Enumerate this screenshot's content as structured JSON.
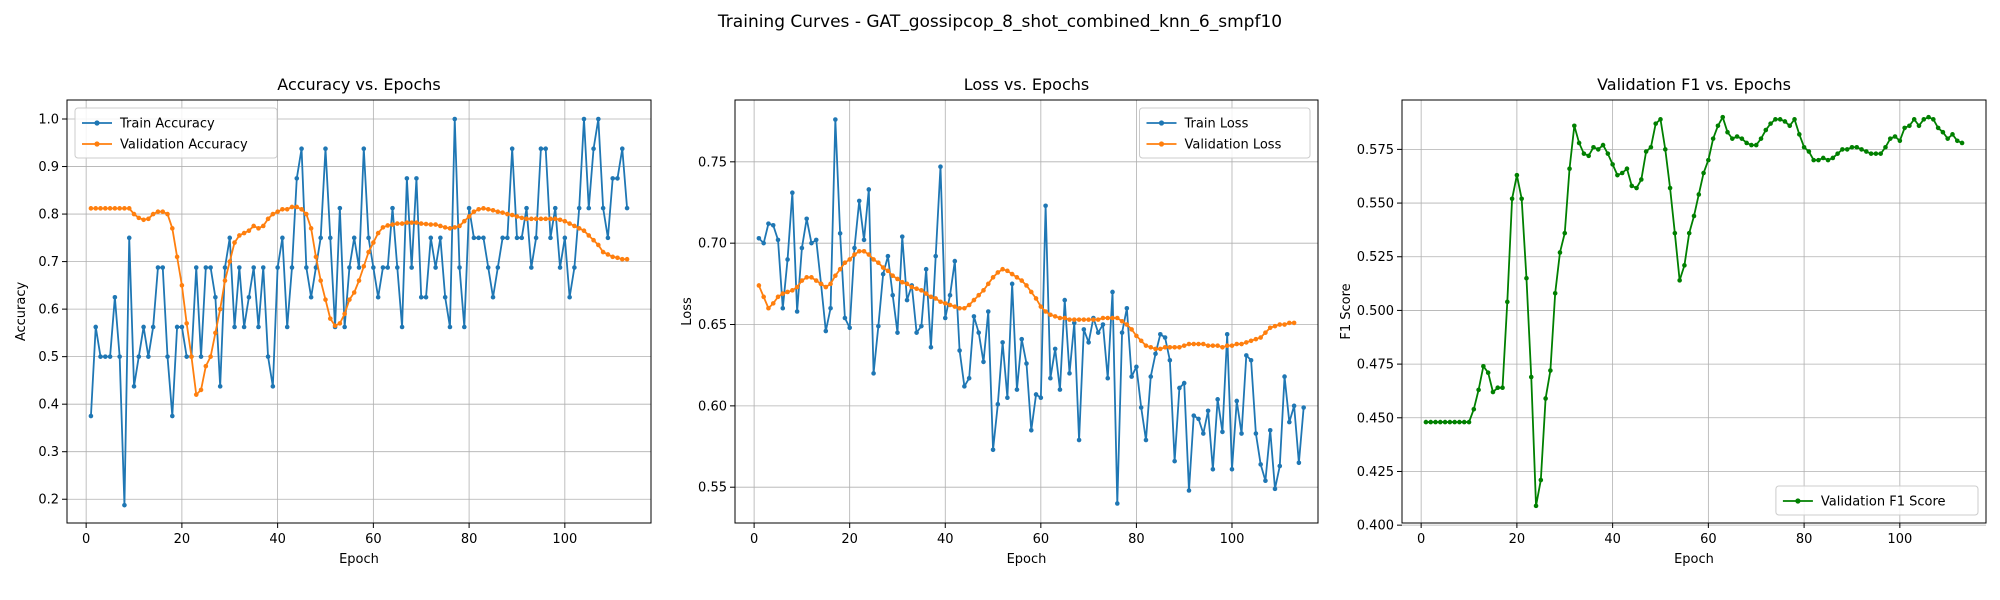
{
  "figure": {
    "title": "Training Curves - GAT_gossipcop_8_shot_combined_knn_6_smpf10",
    "colors": {
      "train": "#1f77b4",
      "validation": "#ff7f0e",
      "f1": "#008000"
    }
  },
  "chart_data": [
    {
      "type": "line",
      "title": "Accuracy vs. Epochs",
      "xlabel": "Epoch",
      "ylabel": "Accuracy",
      "xlim": [
        -4,
        118
      ],
      "ylim": [
        0.15,
        1.04
      ],
      "xticks": [
        0,
        20,
        40,
        60,
        80,
        100
      ],
      "yticks": [
        0.2,
        0.3,
        0.4,
        0.5,
        0.6,
        0.7,
        0.8,
        0.9,
        1.0
      ],
      "ytick_labels": [
        "0.2",
        "0.3",
        "0.4",
        "0.5",
        "0.6",
        "0.7",
        "0.8",
        "0.9",
        "1.0"
      ],
      "grid": true,
      "legend": "upper-left",
      "series": [
        {
          "name": "Train Accuracy",
          "color": "#1f77b4",
          "x_start": 1,
          "values": [
            0.375,
            0.5625,
            0.5,
            0.5,
            0.5,
            0.625,
            0.5,
            0.1875,
            0.75,
            0.4375,
            0.5,
            0.5625,
            0.5,
            0.5625,
            0.6875,
            0.6875,
            0.5,
            0.375,
            0.5625,
            0.5625,
            0.5,
            0.5,
            0.6875,
            0.5,
            0.6875,
            0.6875,
            0.625,
            0.4375,
            0.6875,
            0.75,
            0.5625,
            0.6875,
            0.5625,
            0.625,
            0.6875,
            0.5625,
            0.6875,
            0.5,
            0.4375,
            0.6875,
            0.75,
            0.5625,
            0.6875,
            0.875,
            0.9375,
            0.6875,
            0.625,
            0.6875,
            0.75,
            0.9375,
            0.75,
            0.5625,
            0.8125,
            0.5625,
            0.6875,
            0.75,
            0.6875,
            0.9375,
            0.75,
            0.6875,
            0.625,
            0.6875,
            0.6875,
            0.8125,
            0.6875,
            0.5625,
            0.875,
            0.6875,
            0.875,
            0.625,
            0.625,
            0.75,
            0.6875,
            0.75,
            0.625,
            0.5625,
            1.0,
            0.6875,
            0.5625,
            0.8125,
            0.75,
            0.75,
            0.75,
            0.6875,
            0.625,
            0.6875,
            0.75,
            0.75,
            0.9375,
            0.75,
            0.75,
            0.8125,
            0.6875,
            0.75,
            0.9375,
            0.9375,
            0.75,
            0.8125,
            0.6875,
            0.75,
            0.625,
            0.6875,
            0.8125,
            1.0,
            0.8125,
            0.9375,
            1.0,
            0.8125,
            0.75,
            0.875,
            0.875,
            0.9375,
            0.8125
          ]
        },
        {
          "name": "Validation Accuracy",
          "color": "#ff7f0e",
          "x_start": 1,
          "values": [
            0.812,
            0.812,
            0.812,
            0.812,
            0.812,
            0.812,
            0.812,
            0.812,
            0.812,
            0.8,
            0.792,
            0.788,
            0.79,
            0.8,
            0.805,
            0.805,
            0.8,
            0.77,
            0.71,
            0.65,
            0.57,
            0.5,
            0.42,
            0.43,
            0.48,
            0.5,
            0.55,
            0.6,
            0.66,
            0.7,
            0.74,
            0.755,
            0.76,
            0.765,
            0.775,
            0.77,
            0.775,
            0.79,
            0.8,
            0.805,
            0.81,
            0.81,
            0.815,
            0.815,
            0.81,
            0.8,
            0.77,
            0.71,
            0.66,
            0.62,
            0.58,
            0.565,
            0.57,
            0.59,
            0.62,
            0.635,
            0.66,
            0.69,
            0.72,
            0.74,
            0.76,
            0.772,
            0.776,
            0.778,
            0.78,
            0.78,
            0.782,
            0.782,
            0.782,
            0.78,
            0.779,
            0.778,
            0.778,
            0.775,
            0.772,
            0.77,
            0.772,
            0.775,
            0.785,
            0.795,
            0.805,
            0.81,
            0.812,
            0.81,
            0.808,
            0.805,
            0.803,
            0.8,
            0.798,
            0.795,
            0.792,
            0.79,
            0.79,
            0.79,
            0.79,
            0.79,
            0.79,
            0.79,
            0.788,
            0.785,
            0.78,
            0.775,
            0.77,
            0.765,
            0.755,
            0.745,
            0.735,
            0.72,
            0.715,
            0.71,
            0.708,
            0.705,
            0.705
          ]
        }
      ]
    },
    {
      "type": "line",
      "title": "Loss vs. Epochs",
      "xlabel": "Epoch",
      "ylabel": "Loss",
      "xlim": [
        -4,
        118
      ],
      "ylim": [
        0.528,
        0.788
      ],
      "xticks": [
        0,
        20,
        40,
        60,
        80,
        100
      ],
      "yticks": [
        0.55,
        0.6,
        0.65,
        0.7,
        0.75
      ],
      "ytick_labels": [
        "0.55",
        "0.60",
        "0.65",
        "0.70",
        "0.75"
      ],
      "grid": true,
      "legend": "upper-right",
      "series": [
        {
          "name": "Train Loss",
          "color": "#1f77b4",
          "x_start": 1,
          "values": [
            0.703,
            0.7,
            0.712,
            0.711,
            0.702,
            0.66,
            0.69,
            0.731,
            0.658,
            0.697,
            0.715,
            0.7,
            0.702,
            0.675,
            0.646,
            0.66,
            0.776,
            0.706,
            0.654,
            0.648,
            0.697,
            0.726,
            0.702,
            0.733,
            0.62,
            0.649,
            0.681,
            0.692,
            0.668,
            0.645,
            0.704,
            0.665,
            0.674,
            0.645,
            0.649,
            0.684,
            0.636,
            0.692,
            0.747,
            0.654,
            0.668,
            0.689,
            0.634,
            0.612,
            0.617,
            0.655,
            0.645,
            0.627,
            0.658,
            0.573,
            0.601,
            0.639,
            0.605,
            0.675,
            0.61,
            0.641,
            0.626,
            0.585,
            0.607,
            0.605,
            0.723,
            0.617,
            0.635,
            0.61,
            0.665,
            0.62,
            0.651,
            0.579,
            0.647,
            0.639,
            0.654,
            0.645,
            0.65,
            0.617,
            0.67,
            0.54,
            0.645,
            0.66,
            0.618,
            0.624,
            0.599,
            0.579,
            0.618,
            0.632,
            0.644,
            0.642,
            0.628,
            0.566,
            0.611,
            0.614,
            0.548,
            0.594,
            0.592,
            0.583,
            0.597,
            0.561,
            0.604,
            0.584,
            0.644,
            0.561,
            0.603,
            0.583,
            0.631,
            0.628,
            0.583,
            0.564,
            0.554,
            0.585,
            0.549,
            0.563,
            0.618,
            0.59,
            0.6,
            0.565,
            0.599
          ]
        },
        {
          "name": "Validation Loss",
          "color": "#ff7f0e",
          "x_start": 1,
          "values": [
            0.674,
            0.667,
            0.66,
            0.663,
            0.667,
            0.669,
            0.67,
            0.671,
            0.673,
            0.677,
            0.679,
            0.679,
            0.677,
            0.675,
            0.673,
            0.675,
            0.68,
            0.684,
            0.688,
            0.69,
            0.693,
            0.695,
            0.695,
            0.693,
            0.69,
            0.688,
            0.685,
            0.683,
            0.68,
            0.678,
            0.676,
            0.675,
            0.673,
            0.672,
            0.671,
            0.669,
            0.667,
            0.666,
            0.664,
            0.663,
            0.662,
            0.661,
            0.66,
            0.66,
            0.662,
            0.665,
            0.668,
            0.671,
            0.675,
            0.679,
            0.682,
            0.684,
            0.683,
            0.681,
            0.679,
            0.677,
            0.674,
            0.67,
            0.666,
            0.661,
            0.658,
            0.656,
            0.655,
            0.654,
            0.654,
            0.653,
            0.653,
            0.653,
            0.653,
            0.653,
            0.653,
            0.653,
            0.654,
            0.654,
            0.654,
            0.654,
            0.652,
            0.65,
            0.647,
            0.643,
            0.64,
            0.637,
            0.636,
            0.635,
            0.635,
            0.636,
            0.636,
            0.636,
            0.636,
            0.637,
            0.638,
            0.638,
            0.638,
            0.638,
            0.637,
            0.637,
            0.637,
            0.636,
            0.637,
            0.637,
            0.638,
            0.638,
            0.639,
            0.64,
            0.641,
            0.642,
            0.645,
            0.648,
            0.649,
            0.65,
            0.65,
            0.651,
            0.651
          ]
        }
      ]
    },
    {
      "type": "line",
      "title": "Validation F1 vs. Epochs",
      "xlabel": "Epoch",
      "ylabel": "F1 Score",
      "xlim": [
        -4,
        118
      ],
      "ylim": [
        0.401,
        0.598
      ],
      "xticks": [
        0,
        20,
        40,
        60,
        80,
        100
      ],
      "yticks": [
        0.4,
        0.425,
        0.45,
        0.475,
        0.5,
        0.525,
        0.55,
        0.575
      ],
      "ytick_labels": [
        "0.400",
        "0.425",
        "0.450",
        "0.475",
        "0.500",
        "0.525",
        "0.550",
        "0.575"
      ],
      "grid": true,
      "legend": "lower-right",
      "series": [
        {
          "name": "Validation F1 Score",
          "color": "#008000",
          "x_start": 1,
          "values": [
            0.448,
            0.448,
            0.448,
            0.448,
            0.448,
            0.448,
            0.448,
            0.448,
            0.448,
            0.448,
            0.454,
            0.463,
            0.474,
            0.471,
            0.462,
            0.464,
            0.464,
            0.504,
            0.552,
            0.563,
            0.552,
            0.515,
            0.469,
            0.409,
            0.421,
            0.459,
            0.472,
            0.508,
            0.527,
            0.536,
            0.566,
            0.586,
            0.578,
            0.573,
            0.572,
            0.576,
            0.575,
            0.577,
            0.573,
            0.568,
            0.563,
            0.564,
            0.566,
            0.558,
            0.557,
            0.561,
            0.574,
            0.576,
            0.587,
            0.589,
            0.575,
            0.557,
            0.536,
            0.514,
            0.521,
            0.536,
            0.544,
            0.554,
            0.564,
            0.57,
            0.58,
            0.586,
            0.59,
            0.583,
            0.58,
            0.581,
            0.58,
            0.578,
            0.577,
            0.577,
            0.58,
            0.584,
            0.587,
            0.589,
            0.589,
            0.588,
            0.586,
            0.589,
            0.582,
            0.576,
            0.574,
            0.57,
            0.57,
            0.571,
            0.57,
            0.571,
            0.573,
            0.575,
            0.575,
            0.576,
            0.576,
            0.575,
            0.574,
            0.573,
            0.573,
            0.573,
            0.576,
            0.58,
            0.581,
            0.579,
            0.585,
            0.586,
            0.589,
            0.586,
            0.589,
            0.59,
            0.589,
            0.585,
            0.583,
            0.58,
            0.582,
            0.579,
            0.578
          ]
        }
      ]
    }
  ]
}
